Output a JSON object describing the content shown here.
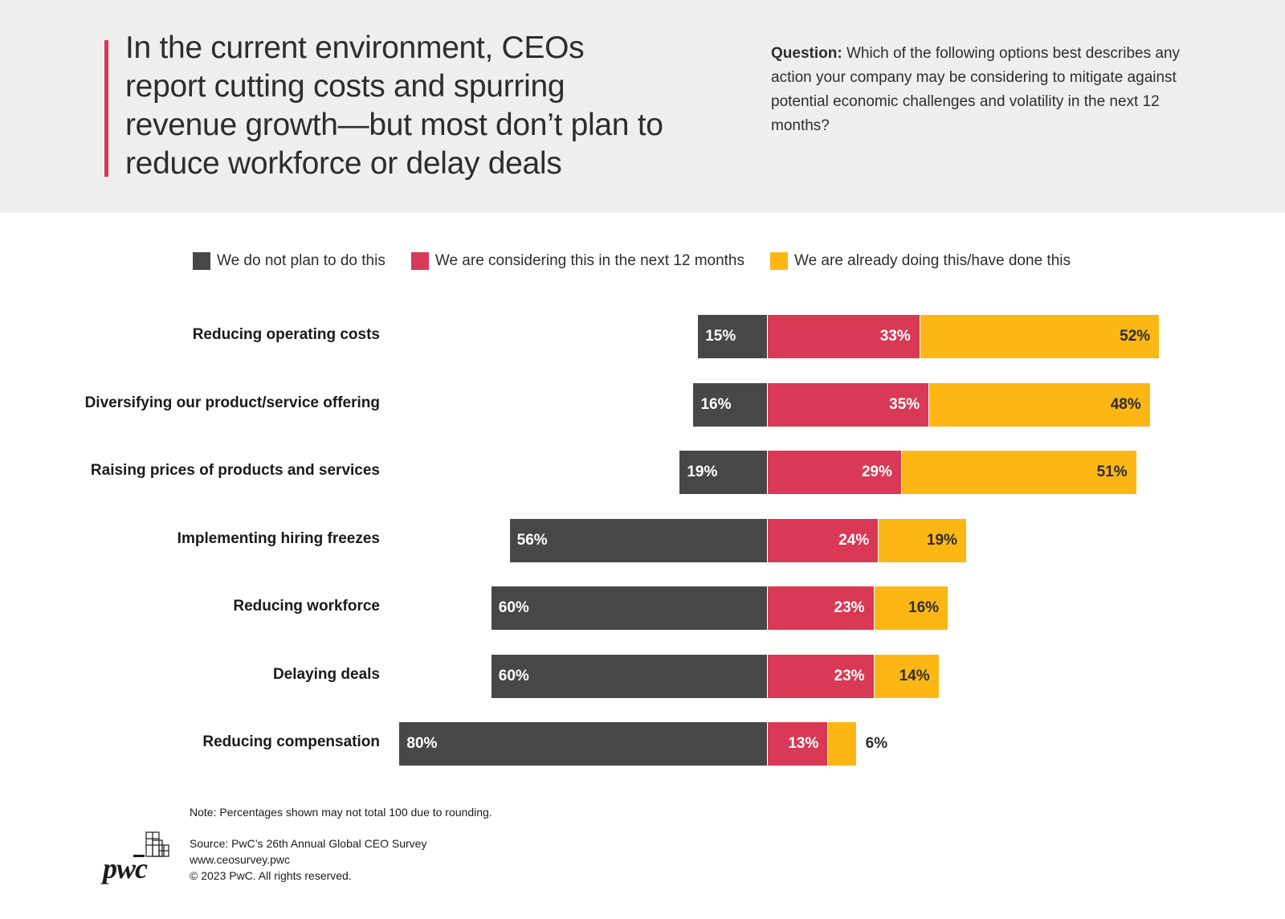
{
  "header": {
    "title": "In the current environment, CEOs report cutting costs and spurring revenue growth—but most don’t plan to reduce workforce or delay deals",
    "question_label": "Question:",
    "question_text": "Which of the following options best describes any action your company may be considering to mitigate against potential economic challenges and volatility in the next 12 months?"
  },
  "legend": {
    "not_plan": "We do not plan to do this",
    "considering": "We are considering this in the next 12 months",
    "already": "We are already doing this/have done this"
  },
  "chart_data": {
    "type": "bar",
    "orientation": "horizontal-diverging-stacked",
    "categories": [
      "Reducing operating costs",
      "Diversifying our product/service offering",
      "Raising prices of products and services",
      "Implementing hiring freezes",
      "Reducing workforce",
      "Delaying deals",
      "Reducing compensation"
    ],
    "series": [
      {
        "name": "We do not plan to do this",
        "values": [
          15,
          16,
          19,
          56,
          60,
          60,
          80
        ],
        "color": "#474747"
      },
      {
        "name": "We are considering this in the next 12 months",
        "values": [
          33,
          35,
          29,
          24,
          23,
          23,
          13
        ],
        "color": "#d93954"
      },
      {
        "name": "We are already doing this/have done this",
        "values": [
          52,
          48,
          51,
          19,
          16,
          14,
          6
        ],
        "color": "#fdb715"
      }
    ],
    "unit": "%",
    "legend_position": "top"
  },
  "footer": {
    "note": "Note: Percentages shown may not total 100 due to rounding.",
    "source": "Source: PwC’s 26th Annual Global CEO Survey",
    "url": "www.ceosurvey.pwc",
    "copyright": "© 2023 PwC. All rights reserved.",
    "logo_text": "pwc"
  }
}
